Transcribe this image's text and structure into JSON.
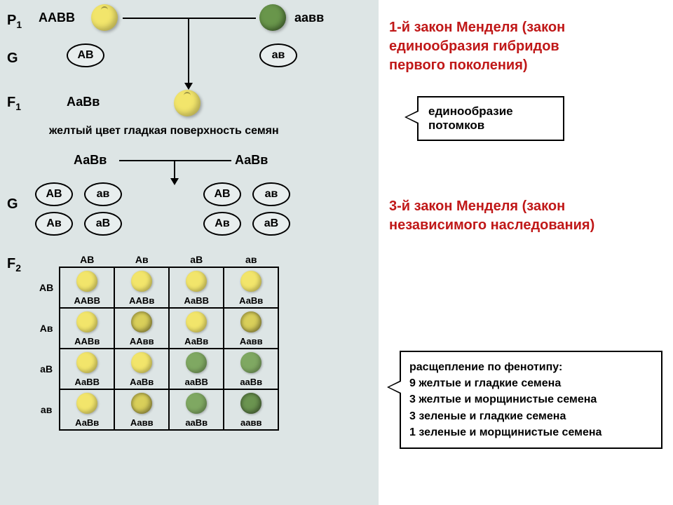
{
  "colors": {
    "left_bg": "#dde5e5",
    "right_bg": "#ffffff",
    "yellow_pea": "#f2e56b",
    "yellow_wrinkled": "#d9cf5a",
    "green_pea": "#7fa862",
    "green_wrinkled": "#6b9450",
    "law_title": "#c01818",
    "border": "#000000"
  },
  "labels": {
    "P1": "P",
    "P1_sub": "1",
    "G": "G",
    "F1": "F",
    "F1_sub": "1",
    "F2": "F",
    "F2_sub": "2"
  },
  "p_row": {
    "parent1_geno": "ААВВ",
    "parent2_geno": "аавв"
  },
  "g_row": {
    "gamete1": "АВ",
    "gamete2": "ав"
  },
  "f1_row": {
    "geno": "АаВв",
    "caption": "желтый цвет гладкая поверхность семян"
  },
  "f1_cross": {
    "left_geno": "АаВв",
    "right_geno": "АаВв"
  },
  "g2_row": {
    "left": [
      "АВ",
      "ав",
      "Ав",
      "аВ"
    ],
    "right": [
      "АВ",
      "ав",
      "Ав",
      "аВ"
    ]
  },
  "punnett": {
    "col_headers": [
      "АВ",
      "Ав",
      "аВ",
      "ав"
    ],
    "row_headers": [
      "АВ",
      "Ав",
      "аВ",
      "ав"
    ],
    "cells": [
      [
        {
          "geno": "ААВВ",
          "pea": "ys"
        },
        {
          "geno": "ААВв",
          "pea": "ys"
        },
        {
          "geno": "АаВВ",
          "pea": "ys"
        },
        {
          "geno": "АаВв",
          "pea": "ys"
        }
      ],
      [
        {
          "geno": "ААВв",
          "pea": "ys"
        },
        {
          "geno": "ААвв",
          "pea": "yw"
        },
        {
          "geno": "АаВв",
          "pea": "ys"
        },
        {
          "geno": "Аавв",
          "pea": "yw"
        }
      ],
      [
        {
          "geno": "АаВВ",
          "pea": "ys"
        },
        {
          "geno": "АаВв",
          "pea": "ys"
        },
        {
          "geno": "ааВВ",
          "pea": "gs"
        },
        {
          "geno": "ааВв",
          "pea": "gs"
        }
      ],
      [
        {
          "geno": "АаВв",
          "pea": "ys"
        },
        {
          "geno": "Аавв",
          "pea": "yw"
        },
        {
          "geno": "ааВв",
          "pea": "gs"
        },
        {
          "geno": "аавв",
          "pea": "gw"
        }
      ]
    ]
  },
  "law1": {
    "title_l1": "1-й закон Менделя (закон",
    "title_l2": "единообразия гибридов",
    "title_l3": "первого поколения)",
    "callout_l1": "единообразие",
    "callout_l2": "потомков"
  },
  "law3": {
    "title_l1": "3-й закон Менделя (закон",
    "title_l2": "независимого наследования)"
  },
  "phenotype": {
    "title": "расщепление по фенотипу:",
    "l1": "9 желтые и гладкие семена",
    "l2": "3 желтые и морщинистые семена",
    "l3": "3 зеленые и гладкие семена",
    "l4": "1 зеленые и морщинистые семена"
  }
}
